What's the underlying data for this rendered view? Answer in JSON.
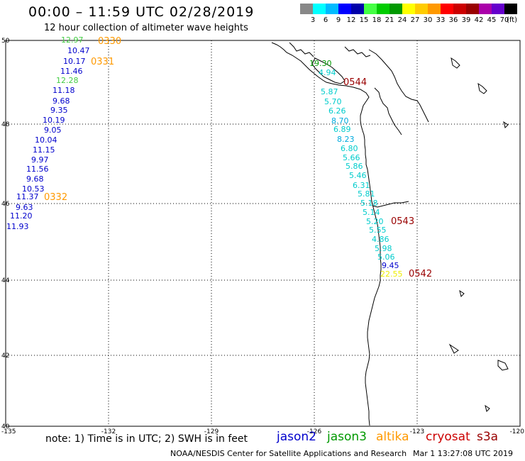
{
  "header": {
    "title": "00:00 – 11:59 UTC 02/28/2019",
    "subtitle": "12 hour collection of altimeter wave heights"
  },
  "colorbar": {
    "colors": [
      "#888888",
      "#00ffff",
      "#00bbff",
      "#0000ff",
      "#0000aa",
      "#44ff44",
      "#00cc00",
      "#009900",
      "#ffff00",
      "#ffcc00",
      "#ff9900",
      "#ff0000",
      "#cc0000",
      "#990000",
      "#aa00aa",
      "#6600cc",
      "#000000"
    ],
    "ticks": [
      "3",
      "6",
      "9",
      "12",
      "15",
      "18",
      "21",
      "24",
      "27",
      "30",
      "33",
      "36",
      "39",
      "42",
      "45",
      "70"
    ],
    "unit": "(ft)"
  },
  "axes": {
    "x_ticks": [
      "-135",
      "-132",
      "-129",
      "-126",
      "-123",
      "-120"
    ],
    "y_ticks": [
      "50",
      "48",
      "46",
      "44",
      "42",
      "40"
    ]
  },
  "passes": [
    "0330",
    "0331",
    "0332",
    "0544",
    "0543",
    "0542"
  ],
  "track_offshore": [
    {
      "value": "12.97",
      "color": "#44cc44"
    },
    {
      "value": "10.47",
      "color": "#0000cc"
    },
    {
      "value": "10.17",
      "color": "#0000cc"
    },
    {
      "value": "11.46",
      "color": "#0000cc"
    },
    {
      "value": "12.28",
      "color": "#44cc44"
    },
    {
      "value": "11.18",
      "color": "#0000cc"
    },
    {
      "value": "9.68",
      "color": "#0000cc"
    },
    {
      "value": "9.35",
      "color": "#0000cc"
    },
    {
      "value": "10.19",
      "color": "#0000cc"
    },
    {
      "value": "9.05",
      "color": "#0000cc"
    },
    {
      "value": "10.04",
      "color": "#0000cc"
    },
    {
      "value": "11.15",
      "color": "#0000cc"
    },
    {
      "value": "9.97",
      "color": "#0000cc"
    },
    {
      "value": "11.56",
      "color": "#0000cc"
    },
    {
      "value": "9.68",
      "color": "#0000cc"
    },
    {
      "value": "10.53",
      "color": "#0000cc"
    },
    {
      "value": "11.37",
      "color": "#0000cc"
    },
    {
      "value": "9.63",
      "color": "#0000cc"
    },
    {
      "value": "11.20",
      "color": "#0000cc"
    },
    {
      "value": "11.93",
      "color": "#0000cc"
    }
  ],
  "track_coastal": [
    {
      "value": "19.30",
      "color": "#009900"
    },
    {
      "value": "4.94",
      "color": "#00cccc"
    },
    {
      "value": "5.87",
      "color": "#00cccc"
    },
    {
      "value": "5.70",
      "color": "#00cccc"
    },
    {
      "value": "6.26",
      "color": "#00cccc"
    },
    {
      "value": "8.70",
      "color": "#00aadd"
    },
    {
      "value": "6.89",
      "color": "#00cccc"
    },
    {
      "value": "8.23",
      "color": "#00aadd"
    },
    {
      "value": "6.80",
      "color": "#00cccc"
    },
    {
      "value": "5.66",
      "color": "#00cccc"
    },
    {
      "value": "5.86",
      "color": "#00cccc"
    },
    {
      "value": "5.46",
      "color": "#00cccc"
    },
    {
      "value": "6.31",
      "color": "#00cccc"
    },
    {
      "value": "5.81",
      "color": "#00cccc"
    },
    {
      "value": "5.18",
      "color": "#00cccc"
    },
    {
      "value": "5.14",
      "color": "#00cccc"
    },
    {
      "value": "5.20",
      "color": "#00cccc"
    },
    {
      "value": "5.55",
      "color": "#00cccc"
    },
    {
      "value": "4.86",
      "color": "#00cccc"
    },
    {
      "value": "5.98",
      "color": "#00cccc"
    },
    {
      "value": "5.06",
      "color": "#00cccc"
    },
    {
      "value": "9.45",
      "color": "#0000cc"
    },
    {
      "value": "22.55",
      "color": "#eeee00"
    }
  ],
  "pass_colors": {
    "altika": "#ff9900",
    "cryosat": "#990000"
  },
  "note": "note:  1) Time is in UTC;  2) SWH is in feet",
  "satellites": [
    {
      "name": "jason2",
      "color": "#0000cc"
    },
    {
      "name": "jason3",
      "color": "#009900"
    },
    {
      "name": "altika",
      "color": "#ff9900"
    },
    {
      "name": "cryosat",
      "color": "#cc0000"
    },
    {
      "name": "s3a",
      "color": "#990000"
    }
  ],
  "footer": {
    "credit": "NOAA/NESDIS Center for Satellite Applications and Research",
    "timestamp": "Mar  1 13:27:08 UTC 2019"
  }
}
